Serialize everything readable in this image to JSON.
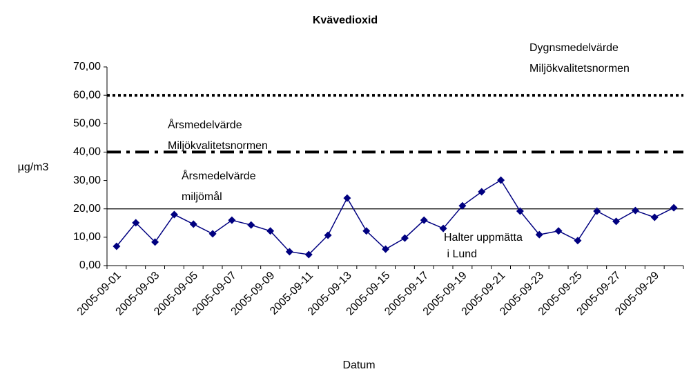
{
  "chart_data": {
    "type": "line",
    "title": "Kvävedioxid",
    "y_label": "µg/m3",
    "x_label": "Datum",
    "categories": [
      "2005-09-01",
      null,
      "2005-09-03",
      null,
      "2005-09-05",
      null,
      "2005-09-07",
      null,
      "2005-09-09",
      null,
      "2005-09-11",
      null,
      "2005-09-13",
      null,
      "2005-09-15",
      null,
      "2005-09-17",
      null,
      "2005-09-19",
      null,
      "2005-09-21",
      null,
      "2005-09-23",
      null,
      "2005-09-25",
      null,
      "2005-09-27",
      null,
      "2005-09-29",
      null
    ],
    "series": [
      {
        "name": "Halter uppmätta i Lund",
        "color": "#000080",
        "marker": "diamond",
        "values": [
          6.8,
          15.1,
          8.3,
          18.0,
          14.6,
          11.2,
          16.0,
          14.3,
          12.2,
          4.9,
          3.9,
          10.7,
          23.8,
          12.2,
          5.8,
          9.7,
          16.0,
          13.1,
          21.1,
          26.0,
          30.1,
          19.2,
          10.9,
          12.2,
          8.8,
          19.2,
          15.6,
          19.4,
          17.0,
          20.4
        ]
      }
    ],
    "reference_lines": [
      {
        "value": 60,
        "style": "dotted",
        "color": "#000000",
        "label": [
          "Dygnsmedelvärde",
          "Miljökvalitetsnormen"
        ]
      },
      {
        "value": 40,
        "style": "dashdot",
        "color": "#000000",
        "label": [
          "Årsmedelvärde",
          "Miljökvalitetsnormen"
        ]
      },
      {
        "value": 20,
        "style": "solid",
        "color": "#000000",
        "label": [
          "Årsmedelvärde",
          "miljömål"
        ]
      }
    ],
    "ylim": [
      0,
      70
    ],
    "yticks": [
      {
        "value": 0,
        "label": "0,00"
      },
      {
        "value": 10,
        "label": "10,00"
      },
      {
        "value": 20,
        "label": "20,00"
      },
      {
        "value": 30,
        "label": "30,00"
      },
      {
        "value": 40,
        "label": "40,00"
      },
      {
        "value": 50,
        "label": "50,00"
      },
      {
        "value": 60,
        "label": "60,00"
      },
      {
        "value": 70,
        "label": "70,00"
      }
    ],
    "grid": false
  }
}
